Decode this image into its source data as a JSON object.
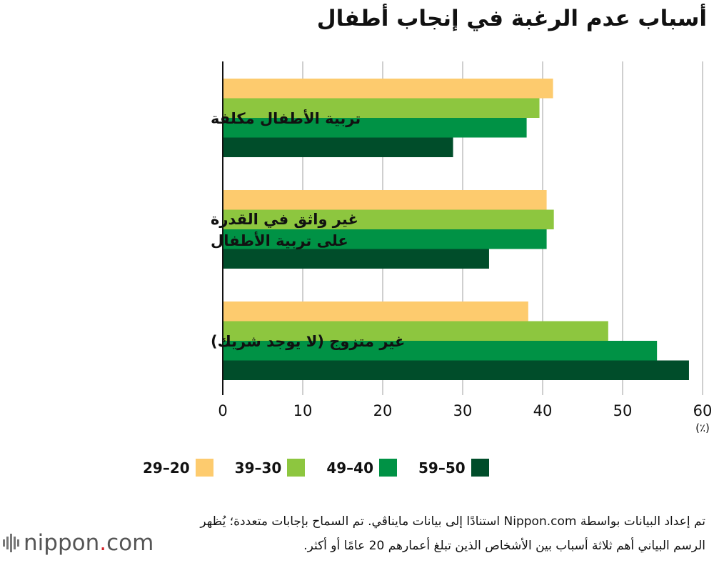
{
  "title": "أسباب عدم الرغبة في إنجاب أطفال",
  "chart_data": {
    "type": "bar",
    "orientation": "horizontal",
    "categories": [
      [
        "تربية الأطفال مكلفة"
      ],
      [
        "غير واثق في القدرة",
        "على تربية الأطفال"
      ],
      [
        "غير متزوج (لا يوجد شريك)"
      ]
    ],
    "series": [
      {
        "name": "20–29",
        "color": "#fdcb6e",
        "values": [
          41.3,
          40.5,
          38.2
        ]
      },
      {
        "name": "30–39",
        "color": "#8dc63f",
        "values": [
          39.6,
          41.4,
          48.2
        ]
      },
      {
        "name": "40–49",
        "color": "#009245",
        "values": [
          38.0,
          40.5,
          54.3
        ]
      },
      {
        "name": "50–59",
        "color": "#004d2a",
        "values": [
          28.8,
          33.3,
          58.3
        ]
      }
    ],
    "xlim": [
      0,
      60
    ],
    "xticks": [
      "0",
      "10",
      "20",
      "30",
      "40",
      "50",
      "60"
    ],
    "unit": "(٪)",
    "grid": true,
    "legend_position": "bottom"
  },
  "legend": [
    {
      "label": "59–50",
      "color": "#004d2a"
    },
    {
      "label": "49–40",
      "color": "#009245"
    },
    {
      "label": "39–30",
      "color": "#8dc63f"
    },
    {
      "label": "29–20",
      "color": "#fdcb6e"
    }
  ],
  "note": "تم إعداد البيانات بواسطة Nippon.com استنادًا إلى بيانات مايناڤي. تم السماح بإجابات متعددة؛ يُظهر الرسم البياني أهم ثلاثة أسباب بين الأشخاص الذين تبلغ أعمارهم 20 عامًا أو أكثر.",
  "logo": {
    "text": "nippon",
    "dot": ".",
    "suffix": "com"
  }
}
